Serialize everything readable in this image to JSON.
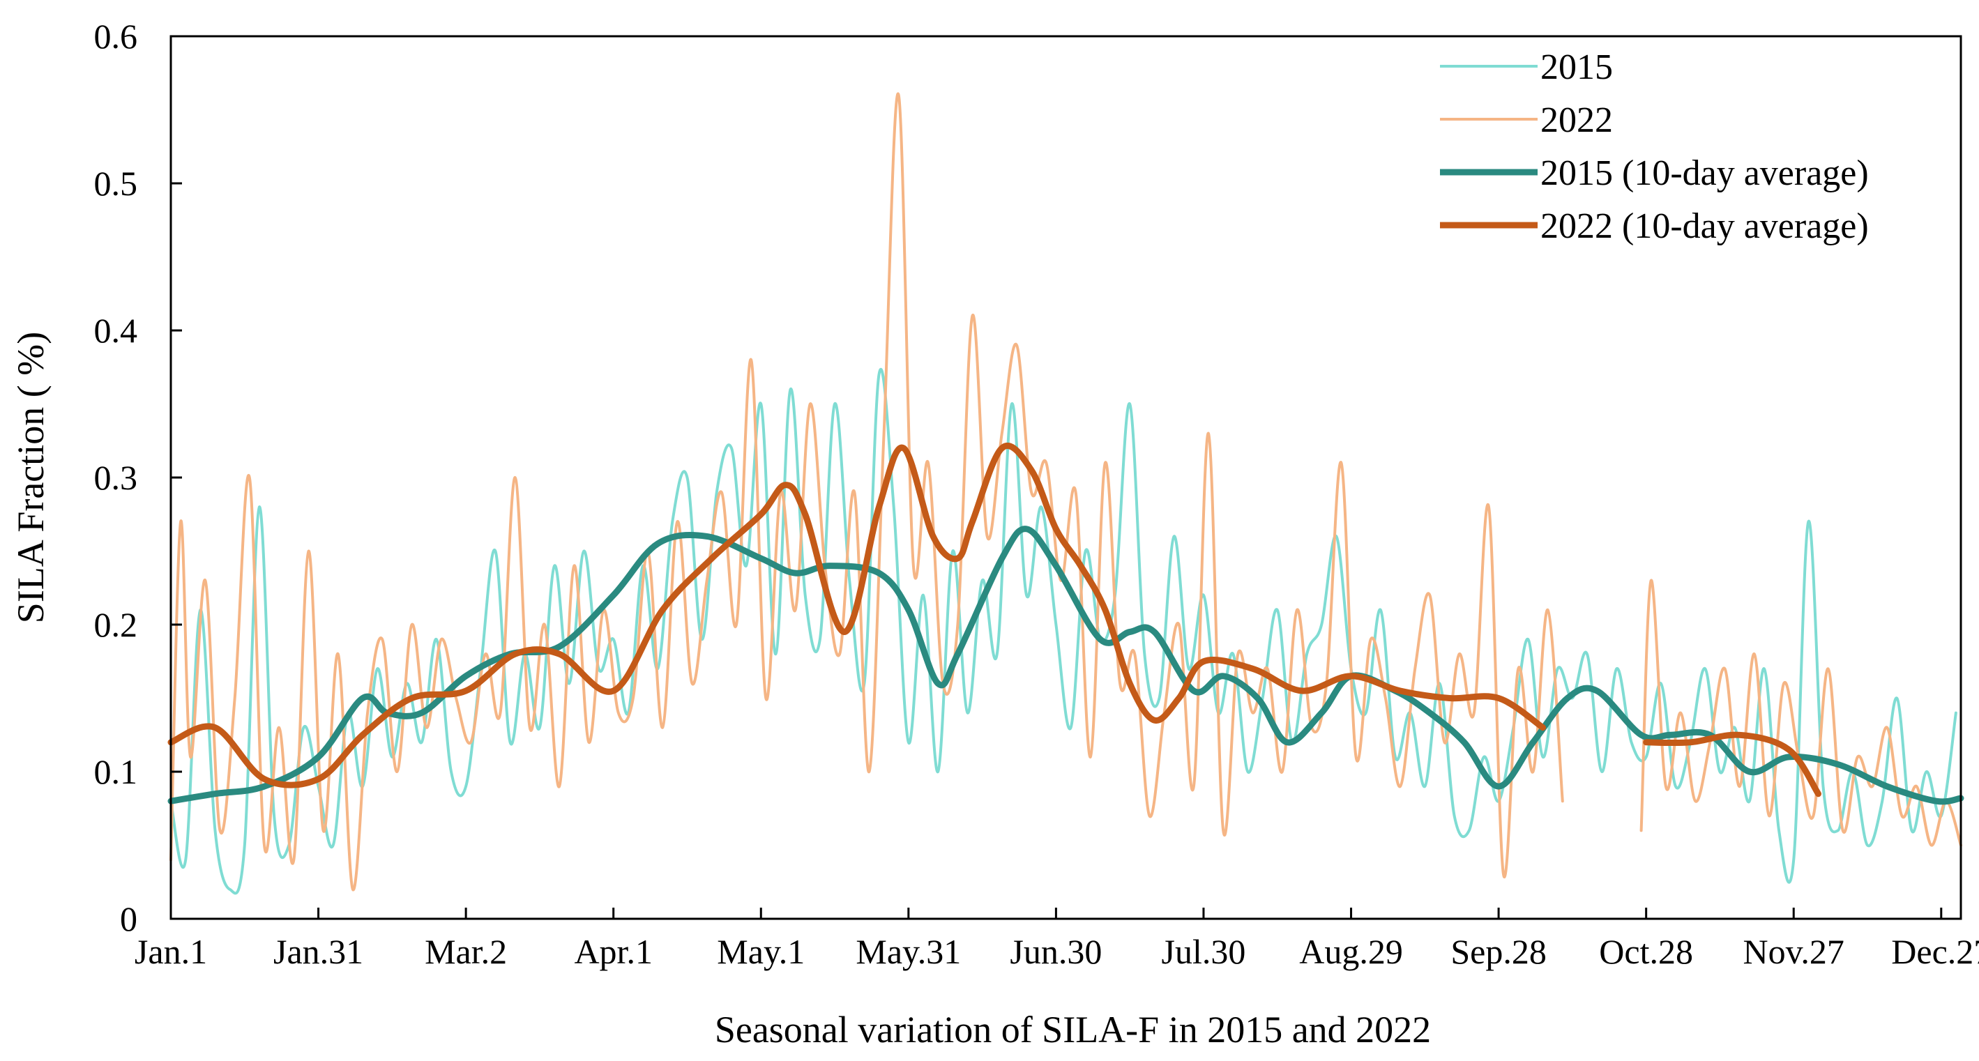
{
  "chart_data": {
    "type": "line",
    "title": "",
    "xlabel": "Seasonal variation of SILA-F  in 2015 and 2022",
    "ylabel": "SILA Fraction ( %)",
    "xlim": [
      1,
      365
    ],
    "ylim": [
      0,
      0.6
    ],
    "yticks": [
      0,
      0.1,
      0.2,
      0.3,
      0.4,
      0.5,
      0.6
    ],
    "ytick_labels": [
      "0",
      "0.1",
      "0.2",
      "0.3",
      "0.4",
      "0.5",
      "0.6"
    ],
    "xticks": [
      1,
      31,
      61,
      91,
      121,
      151,
      181,
      211,
      241,
      271,
      301,
      331,
      361
    ],
    "xtick_labels": [
      "Jan.1",
      "Jan.31",
      "Mar.2",
      "Apr.1",
      "May.1",
      "May.31",
      "Jun.30",
      "Jul.30",
      "Aug.29",
      "Sep.28",
      "Oct.28",
      "Nov.27",
      "Dec.27"
    ],
    "grid": false,
    "legend_position": "top-right",
    "series": [
      {
        "name": "2015",
        "color": "#7fdcd3",
        "style": "thin",
        "x": [
          1,
          4,
          7,
          10,
          13,
          16,
          19,
          22,
          25,
          28,
          31,
          34,
          37,
          40,
          43,
          46,
          49,
          52,
          55,
          58,
          61,
          64,
          67,
          70,
          73,
          76,
          79,
          82,
          85,
          88,
          91,
          94,
          97,
          100,
          103,
          106,
          109,
          112,
          115,
          118,
          121,
          124,
          127,
          130,
          133,
          136,
          139,
          142,
          145,
          148,
          151,
          154,
          157,
          160,
          163,
          166,
          169,
          172,
          175,
          178,
          181,
          184,
          187,
          190,
          193,
          196,
          199,
          202,
          205,
          208,
          211,
          214,
          217,
          220,
          223,
          226,
          229,
          232,
          235,
          238,
          241,
          244,
          247,
          250,
          253,
          256,
          259,
          262,
          265,
          268,
          271,
          274,
          277,
          280,
          283,
          286,
          289,
          292,
          295,
          298,
          301,
          304,
          307,
          310,
          313,
          316,
          319,
          322,
          325,
          328,
          331,
          334,
          337,
          340,
          343,
          346,
          349,
          352,
          355,
          358,
          361,
          364
        ],
        "values": [
          0.08,
          0.04,
          0.21,
          0.06,
          0.02,
          0.05,
          0.28,
          0.07,
          0.05,
          0.13,
          0.09,
          0.05,
          0.14,
          0.09,
          0.17,
          0.11,
          0.16,
          0.12,
          0.19,
          0.1,
          0.09,
          0.17,
          0.25,
          0.12,
          0.18,
          0.13,
          0.24,
          0.16,
          0.25,
          0.17,
          0.19,
          0.14,
          0.24,
          0.17,
          0.27,
          0.3,
          0.19,
          0.29,
          0.32,
          0.24,
          0.35,
          0.18,
          0.36,
          0.22,
          0.19,
          0.35,
          0.23,
          0.16,
          0.37,
          0.28,
          0.12,
          0.22,
          0.1,
          0.25,
          0.14,
          0.23,
          0.18,
          0.35,
          0.22,
          0.28,
          0.2,
          0.13,
          0.25,
          0.19,
          0.22,
          0.35,
          0.18,
          0.15,
          0.26,
          0.17,
          0.22,
          0.14,
          0.18,
          0.1,
          0.15,
          0.21,
          0.12,
          0.18,
          0.2,
          0.26,
          0.17,
          0.14,
          0.21,
          0.11,
          0.14,
          0.09,
          0.16,
          0.07,
          0.06,
          0.11,
          0.08,
          0.13,
          0.19,
          0.11,
          0.17,
          0.15,
          0.18,
          0.1,
          0.17,
          0.12,
          0.11,
          0.16,
          0.09,
          0.12,
          0.17,
          0.1,
          0.13,
          0.08,
          0.17,
          0.06,
          0.04,
          0.27,
          0.09,
          0.06,
          0.1,
          0.05,
          0.08,
          0.15,
          0.06,
          0.1,
          0.07,
          0.14
        ]
      },
      {
        "name": "2022",
        "color": "#f5b585",
        "style": "thin",
        "x": [
          1,
          3,
          5,
          8,
          11,
          14,
          17,
          20,
          23,
          26,
          29,
          32,
          35,
          38,
          41,
          44,
          47,
          50,
          53,
          56,
          59,
          62,
          65,
          68,
          71,
          74,
          77,
          80,
          83,
          86,
          89,
          92,
          95,
          98,
          101,
          104,
          107,
          110,
          113,
          116,
          119,
          122,
          125,
          128,
          131,
          134,
          137,
          140,
          143,
          146,
          149,
          152,
          155,
          158,
          161,
          164,
          167,
          170,
          173,
          176,
          179,
          182,
          185,
          188,
          191,
          194,
          197,
          200,
          203,
          206,
          209,
          212,
          215,
          218,
          221,
          224,
          227,
          230,
          233,
          236,
          239,
          242,
          245,
          248,
          251,
          254,
          257,
          260,
          263,
          266,
          269,
          272,
          275,
          278,
          281,
          284
        ],
        "values": [
          0.04,
          0.27,
          0.11,
          0.23,
          0.06,
          0.15,
          0.3,
          0.05,
          0.13,
          0.04,
          0.25,
          0.06,
          0.18,
          0.02,
          0.14,
          0.19,
          0.1,
          0.2,
          0.13,
          0.19,
          0.15,
          0.12,
          0.18,
          0.14,
          0.3,
          0.13,
          0.2,
          0.09,
          0.24,
          0.12,
          0.21,
          0.14,
          0.15,
          0.25,
          0.13,
          0.27,
          0.16,
          0.23,
          0.29,
          0.2,
          0.38,
          0.15,
          0.29,
          0.21,
          0.35,
          0.24,
          0.18,
          0.29,
          0.1,
          0.33,
          0.56,
          0.24,
          0.31,
          0.16,
          0.2,
          0.41,
          0.26,
          0.33,
          0.39,
          0.29,
          0.31,
          0.23,
          0.29,
          0.11,
          0.31,
          0.16,
          0.18,
          0.07,
          0.14,
          0.2,
          0.09,
          0.33,
          0.06,
          0.18,
          0.14,
          0.17,
          0.1,
          0.21,
          0.13,
          0.16,
          0.31,
          0.11,
          0.19,
          0.15,
          0.09,
          0.17,
          0.22,
          0.12,
          0.18,
          0.14,
          0.28,
          0.03,
          0.17,
          0.1,
          0.21,
          0.08
        ]
      },
      {
        "name": "2022",
        "color": "#f5b585",
        "style": "thin",
        "x": [
          300,
          302,
          305,
          308,
          311,
          314,
          317,
          320,
          323,
          326,
          329,
          332,
          335,
          338,
          341,
          344,
          347,
          350,
          353,
          356,
          359,
          362,
          365
        ],
        "values": [
          0.06,
          0.23,
          0.09,
          0.14,
          0.08,
          0.12,
          0.17,
          0.09,
          0.18,
          0.07,
          0.16,
          0.11,
          0.07,
          0.17,
          0.06,
          0.11,
          0.09,
          0.13,
          0.07,
          0.09,
          0.05,
          0.08,
          0.05
        ]
      },
      {
        "name": "2015 (10-day average)",
        "color": "#2a8a80",
        "style": "thick",
        "x": [
          1,
          10,
          20,
          31,
          40,
          45,
          52,
          61,
          70,
          80,
          91,
          100,
          110,
          121,
          128,
          135,
          145,
          151,
          157,
          161,
          170,
          175,
          181,
          190,
          196,
          201,
          209,
          215,
          222,
          228,
          235,
          241,
          250,
          257,
          264,
          271,
          278,
          285,
          291,
          300,
          306,
          314,
          322,
          330,
          340,
          350,
          360,
          365
        ],
        "values": [
          0.08,
          0.085,
          0.09,
          0.11,
          0.15,
          0.14,
          0.14,
          0.165,
          0.18,
          0.185,
          0.22,
          0.255,
          0.26,
          0.245,
          0.235,
          0.24,
          0.235,
          0.21,
          0.16,
          0.18,
          0.245,
          0.265,
          0.24,
          0.19,
          0.195,
          0.195,
          0.155,
          0.165,
          0.15,
          0.12,
          0.14,
          0.165,
          0.155,
          0.14,
          0.12,
          0.09,
          0.12,
          0.15,
          0.155,
          0.125,
          0.125,
          0.125,
          0.1,
          0.11,
          0.105,
          0.09,
          0.08,
          0.082
        ]
      },
      {
        "name": "2022 (10-day average)",
        "color": "#c45a18",
        "style": "thick",
        "x": [
          1,
          10,
          20,
          31,
          40,
          50,
          61,
          71,
          80,
          91,
          101,
          111,
          121,
          126,
          130,
          138,
          145,
          150,
          156,
          161,
          164,
          170,
          176,
          181,
          186,
          191,
          196,
          201,
          206,
          211,
          221,
          231,
          241,
          251,
          261,
          271,
          280
        ],
        "values": [
          0.12,
          0.13,
          0.095,
          0.095,
          0.125,
          0.15,
          0.155,
          0.18,
          0.18,
          0.155,
          0.21,
          0.245,
          0.275,
          0.295,
          0.275,
          0.195,
          0.28,
          0.32,
          0.26,
          0.245,
          0.27,
          0.32,
          0.305,
          0.265,
          0.24,
          0.21,
          0.16,
          0.135,
          0.15,
          0.175,
          0.17,
          0.155,
          0.165,
          0.155,
          0.15,
          0.15,
          0.13
        ]
      },
      {
        "name": "2022 (10-day average)",
        "color": "#c45a18",
        "style": "thick",
        "x": [
          301,
          310,
          320,
          330,
          336
        ],
        "values": [
          0.12,
          0.12,
          0.125,
          0.115,
          0.085
        ]
      }
    ],
    "legend": [
      {
        "name": "2015",
        "color": "#7fdcd3",
        "style": "thin"
      },
      {
        "name": "2022",
        "color": "#f5b585",
        "style": "thin"
      },
      {
        "name": "2015 (10-day average)",
        "color": "#2a8a80",
        "style": "thick"
      },
      {
        "name": "2022 (10-day average)",
        "color": "#c45a18",
        "style": "thick"
      }
    ]
  }
}
